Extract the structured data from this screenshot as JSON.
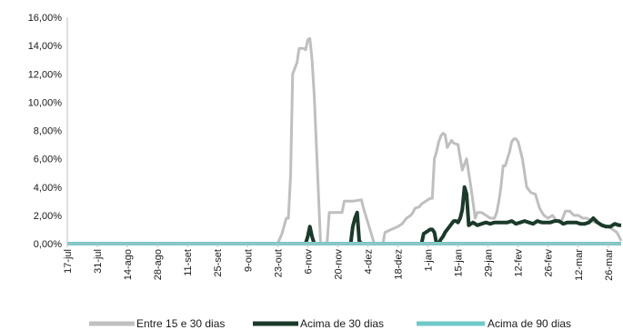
{
  "chart_data": {
    "type": "line",
    "title": "",
    "xlabel": "",
    "ylabel": "",
    "ylim": [
      0,
      0.16
    ],
    "y_ticks": [
      "0,00%",
      "2,00%",
      "4,00%",
      "6,00%",
      "8,00%",
      "10,00%",
      "12,00%",
      "14,00%",
      "16,00%"
    ],
    "x_ticks": [
      "17-jul",
      "31-jul",
      "14-ago",
      "28-ago",
      "11-set",
      "25-set",
      "9-out",
      "23-out",
      "6-nov",
      "20-nov",
      "4-dez",
      "18-dez",
      "1-jan",
      "15-jan",
      "29-jan",
      "12-fev",
      "26-fev",
      "12-mar",
      "26-mar"
    ],
    "x_range_days": [
      0,
      258
    ],
    "grid": false,
    "legend_position": "bottom",
    "series": [
      {
        "name": "Entre 15 e 30 dias",
        "color": "#bfbfbf",
        "x": [
          0,
          98,
          100,
          102,
          103,
          104,
          105,
          107,
          108,
          109,
          110,
          111,
          112,
          113,
          114,
          115,
          118,
          119,
          121,
          122,
          123,
          124,
          128,
          129,
          131,
          132,
          133,
          137,
          138,
          143,
          144,
          147,
          148,
          151,
          154,
          156,
          157,
          158,
          160,
          161,
          162,
          164,
          165,
          167,
          169,
          170,
          171,
          172,
          173,
          174,
          175,
          176,
          177,
          179,
          180,
          182,
          184,
          186,
          188,
          190,
          191,
          193,
          195,
          197,
          199,
          200,
          201,
          202,
          203,
          204,
          206,
          207,
          208,
          209,
          210,
          212,
          214,
          216,
          218,
          220,
          222,
          224,
          226,
          228,
          230,
          232,
          234,
          236,
          238,
          240,
          242,
          244,
          246,
          248,
          250,
          252,
          254,
          256,
          258
        ],
        "y": [
          0,
          0,
          0.007,
          0.018,
          0.018,
          0.048,
          0.12,
          0.128,
          0.138,
          0.138,
          0.138,
          0.137,
          0.144,
          0.145,
          0.13,
          0.105,
          0,
          0,
          0,
          0.022,
          0.022,
          0.022,
          0.022,
          0.03,
          0.03,
          0.03,
          0.03,
          0.031,
          0.025,
          0,
          0,
          0,
          0.008,
          0.01,
          0.012,
          0.014,
          0.016,
          0.018,
          0.02,
          0.022,
          0.025,
          0.026,
          0.028,
          0.03,
          0.032,
          0.032,
          0.06,
          0.065,
          0.072,
          0.076,
          0.078,
          0.077,
          0.068,
          0.073,
          0.071,
          0.07,
          0.052,
          0.06,
          0.04,
          0.018,
          0.022,
          0.022,
          0.02,
          0.018,
          0.018,
          0.022,
          0.03,
          0.04,
          0.055,
          0.055,
          0.065,
          0.072,
          0.074,
          0.074,
          0.072,
          0.06,
          0.04,
          0.036,
          0.035,
          0.025,
          0.02,
          0.018,
          0.02,
          0.016,
          0.015,
          0.023,
          0.023,
          0.02,
          0.02,
          0.018,
          0.018,
          0.016,
          0.015,
          0.014,
          0.013,
          0.012,
          0.01,
          0.008,
          0.002
        ]
      },
      {
        "name": "Acima de 30 dias",
        "color": "#1a3a2a",
        "x": [
          0,
          111,
          112,
          113,
          114,
          115,
          116,
          131,
          132,
          133,
          134,
          135,
          136,
          137,
          138,
          165,
          166,
          167,
          168,
          169,
          170,
          171,
          172,
          173,
          174,
          175,
          176,
          177,
          178,
          179,
          180,
          181,
          182,
          183,
          184,
          185,
          186,
          187,
          188,
          189,
          190,
          191,
          193,
          195,
          197,
          199,
          201,
          203,
          205,
          207,
          209,
          211,
          213,
          215,
          217,
          219,
          221,
          223,
          225,
          227,
          229,
          231,
          233,
          235,
          237,
          239,
          241,
          243,
          245,
          247,
          249,
          251,
          253,
          255,
          257,
          258
        ],
        "y": [
          0,
          0,
          0.005,
          0.012,
          0.005,
          0,
          0,
          0,
          0,
          0.012,
          0.018,
          0.022,
          0.002,
          0,
          0,
          0,
          0.007,
          0.008,
          0.009,
          0.01,
          0.01,
          0.008,
          0,
          0,
          0.003,
          0.005,
          0.008,
          0.01,
          0.012,
          0.014,
          0.016,
          0.016,
          0.015,
          0.018,
          0.024,
          0.04,
          0.035,
          0.013,
          0.014,
          0.015,
          0.014,
          0.013,
          0.014,
          0.015,
          0.014,
          0.015,
          0.015,
          0.015,
          0.015,
          0.016,
          0.014,
          0.015,
          0.016,
          0.015,
          0.014,
          0.016,
          0.015,
          0.015,
          0.015,
          0.016,
          0.016,
          0.014,
          0.015,
          0.015,
          0.015,
          0.014,
          0.014,
          0.015,
          0.018,
          0.015,
          0.013,
          0.012,
          0.012,
          0.014,
          0.013,
          0.013
        ]
      },
      {
        "name": "Acima de 90 dias",
        "color": "#6fc9c9",
        "x": [
          0,
          258
        ],
        "y": [
          0,
          0
        ]
      }
    ]
  }
}
